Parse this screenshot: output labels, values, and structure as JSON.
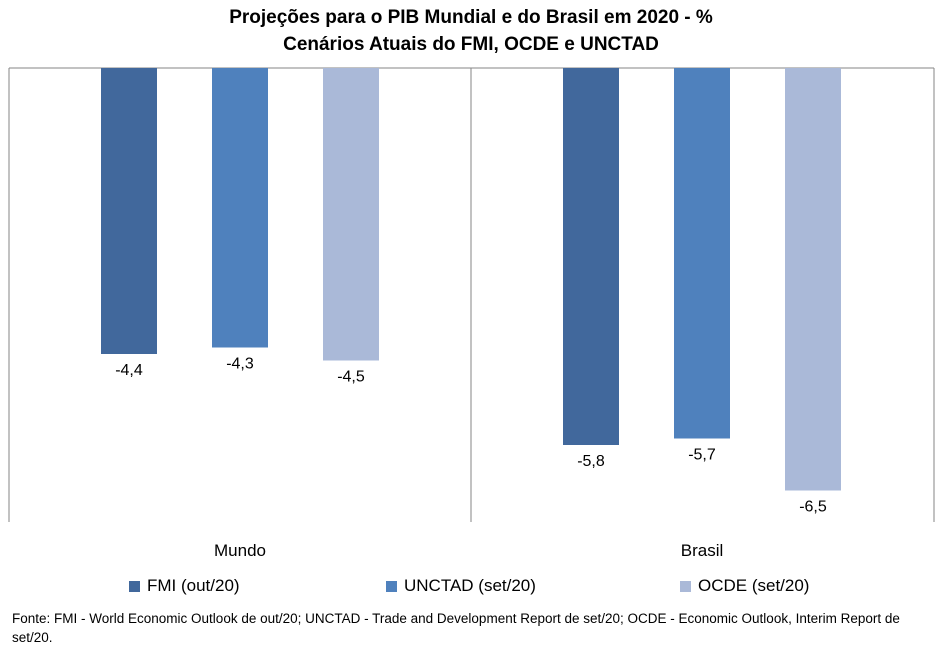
{
  "title_line1": "Projeções para o PIB Mundial e do Brasil em 2020 - %",
  "title_line2": "Cenários Atuais do FMI, OCDE e UNCTAD",
  "source": "Fonte: FMI - World Economic Outlook de out/20; UNCTAD - Trade and Development Report de set/20; OCDE - Economic Outlook, Interim Report de set/20.",
  "colors": {
    "FMI": "#41689c",
    "UNCTAD": "#4f81bd",
    "OCDE": "#aab9d8"
  },
  "chart_data": {
    "type": "bar",
    "title": "Projeções para o PIB Mundial e do Brasil em 2020 - % Cenários Atuais do FMI, OCDE e UNCTAD",
    "categories": [
      "Mundo",
      "Brasil"
    ],
    "series": [
      {
        "name": "FMI (out/20)",
        "values": [
          -4.4,
          -5.8
        ],
        "labels": [
          "-4,4",
          "-5,8"
        ]
      },
      {
        "name": "UNCTAD (set/20)",
        "values": [
          -4.3,
          -5.7
        ],
        "labels": [
          "-4,3",
          "-5,7"
        ]
      },
      {
        "name": "OCDE (set/20)",
        "values": [
          -4.5,
          -6.5
        ],
        "labels": [
          "-4,5",
          "-6,5"
        ]
      }
    ],
    "ylim": [
      -7,
      0
    ],
    "grid": false,
    "legend": "bottom"
  }
}
